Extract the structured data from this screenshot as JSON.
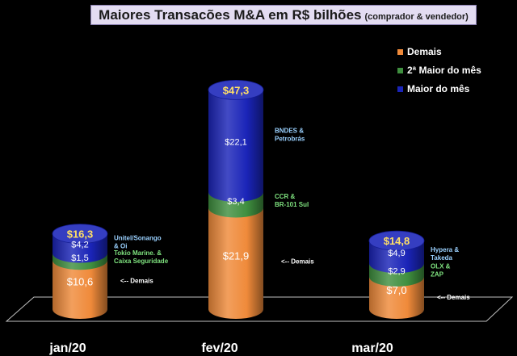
{
  "chart_data": {
    "type": "bar",
    "stacked": true,
    "title": "Maiores Transacões M&A em R$ bilhões",
    "subtitle": "(comprador & vendedor)",
    "categories": [
      "jan/20",
      "fev/20",
      "mar/20"
    ],
    "totals": [
      16.3,
      47.3,
      14.8
    ],
    "total_labels": [
      "$16,3",
      "$47,3",
      "$14,8"
    ],
    "legend_position": "top-right",
    "grid": false,
    "series": [
      {
        "name": "Demais",
        "color": "#ef8a3a",
        "values": [
          10.6,
          21.9,
          7.0
        ],
        "value_labels": [
          "$10,6",
          "$21,9",
          "$7,0"
        ]
      },
      {
        "name": "2ª Maior do mês",
        "color": "#3f8f3f",
        "values": [
          1.5,
          3.4,
          2.9
        ],
        "value_labels": [
          "$1,5",
          "$3,4",
          "$2,9"
        ]
      },
      {
        "name": "Maior do mês",
        "color": "#1a24b8",
        "values": [
          4.2,
          22.1,
          4.9
        ],
        "value_labels": [
          "$4,2",
          "$22,1",
          "$4,9"
        ]
      }
    ],
    "annotations": [
      {
        "category": "jan/20",
        "series": "Maior do mês",
        "color": "#9ad1ff",
        "lines": [
          "Unitel/Sonango",
          "&  Oi"
        ]
      },
      {
        "category": "jan/20",
        "series": "2ª Maior do mês",
        "color": "#7fe37f",
        "lines": [
          "Tokio Marine. &",
          "Caixa Seguridade"
        ]
      },
      {
        "category": "jan/20",
        "series": "Demais",
        "color": "#ffffff",
        "lines": [
          "<-- Demais"
        ]
      },
      {
        "category": "fev/20",
        "series": "Maior do mês",
        "color": "#9ad1ff",
        "lines": [
          "BNDES &",
          "Petrobrás"
        ]
      },
      {
        "category": "fev/20",
        "series": "2ª Maior do mês",
        "color": "#7fe37f",
        "lines": [
          "CCR  &",
          "BR-101 Sul"
        ]
      },
      {
        "category": "fev/20",
        "series": "Demais",
        "color": "#ffffff",
        "lines": [
          "<-- Demais"
        ]
      },
      {
        "category": "mar/20",
        "series": "Maior do mês",
        "color": "#9ad1ff",
        "lines": [
          "Hypera &",
          "Takeda"
        ]
      },
      {
        "category": "mar/20",
        "series": "2ª Maior do mês",
        "color": "#7fe37f",
        "lines": [
          "OLX &",
          "ZAP"
        ]
      },
      {
        "category": "mar/20",
        "series": "Demais",
        "color": "#ffffff",
        "lines": [
          "<-- Demais"
        ]
      }
    ]
  }
}
